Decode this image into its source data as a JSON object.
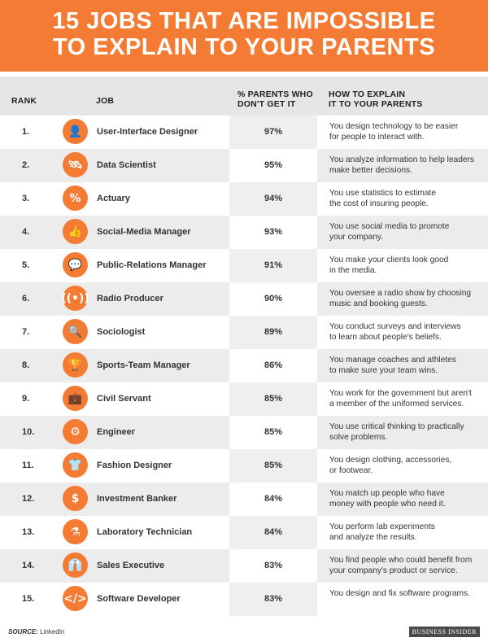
{
  "title": {
    "line1": "15 JOBS THAT ARE IMPOSSIBLE",
    "line2": "TO EXPLAIN TO YOUR PARENTS"
  },
  "header": {
    "rank": "RANK",
    "job": "JOB",
    "pct_line1": "% PARENTS WHO",
    "pct_line2": "DON'T GET IT",
    "how_line1": "HOW TO EXPLAIN",
    "how_line2": "IT TO YOUR PARENTS"
  },
  "accent_color": "#f47b33",
  "rows": [
    {
      "rank": "1.",
      "icon": "person-icon",
      "glyph": "👤",
      "job": "User-Interface Designer",
      "pct": "97%",
      "how1": "You design technology to be easier",
      "how2": "for people to interact with."
    },
    {
      "rank": "2.",
      "icon": "satellite-icon",
      "glyph": "🛰",
      "job": "Data Scientist",
      "pct": "95%",
      "how1": "You analyze information to help leaders",
      "how2": "make better decisions."
    },
    {
      "rank": "3.",
      "icon": "percent-icon",
      "glyph": "%",
      "job": "Actuary",
      "pct": "94%",
      "how1": "You use statistics to estimate",
      "how2": "the cost of insuring people."
    },
    {
      "rank": "4.",
      "icon": "thumbs-up-icon",
      "glyph": "👍",
      "job": "Social-Media Manager",
      "pct": "93%",
      "how1": "You use social media to promote",
      "how2": "your company."
    },
    {
      "rank": "5.",
      "icon": "speech-bubble-icon",
      "glyph": "💬",
      "job": "Public-Relations Manager",
      "pct": "91%",
      "how1": "You make your clients look good",
      "how2": "in the media."
    },
    {
      "rank": "6.",
      "icon": "radio-broadcast-icon",
      "glyph": "((•))",
      "job": "Radio Producer",
      "pct": "90%",
      "how1": "You oversee a radio show by choosing",
      "how2": "music and booking guests."
    },
    {
      "rank": "7.",
      "icon": "magnifying-glass-icon",
      "glyph": "🔍",
      "job": "Sociologist",
      "pct": "89%",
      "how1": "You conduct surveys and interviews",
      "how2": "to learn about people's beliefs."
    },
    {
      "rank": "8.",
      "icon": "trophy-icon",
      "glyph": "🏆",
      "job": "Sports-Team Manager",
      "pct": "86%",
      "how1": "You manage coaches and athletes",
      "how2": "to make sure your team wins."
    },
    {
      "rank": "9.",
      "icon": "briefcase-icon",
      "glyph": "💼",
      "job": "Civil Servant",
      "pct": "85%",
      "how1": "You work for the government but aren't",
      "how2": "a member of the uniformed services."
    },
    {
      "rank": "10.",
      "icon": "gears-icon",
      "glyph": "⚙",
      "job": "Engineer",
      "pct": "85%",
      "how1": "You use critical thinking to practically",
      "how2": "solve problems."
    },
    {
      "rank": "11.",
      "icon": "t-shirt-icon",
      "glyph": "👕",
      "job": "Fashion Designer",
      "pct": "85%",
      "how1": "You design clothing, accessories,",
      "how2": " or footwear."
    },
    {
      "rank": "12.",
      "icon": "dollar-sign-icon",
      "glyph": "$",
      "job": "Investment Banker",
      "pct": "84%",
      "how1": "You match up people who have",
      "how2": "money with people who need it."
    },
    {
      "rank": "13.",
      "icon": "flask-icon",
      "glyph": "⚗",
      "job": "Laboratory Technician",
      "pct": "84%",
      "how1": "You perform lab experiments",
      "how2": "and analyze the results."
    },
    {
      "rank": "14.",
      "icon": "necktie-icon",
      "glyph": "👔",
      "job": "Sales Executive",
      "pct": "83%",
      "how1": "You find people who could benefit from",
      "how2": "your company's product or service."
    },
    {
      "rank": "15.",
      "icon": "code-brackets-icon",
      "glyph": "</>",
      "job": "Software Developer",
      "pct": "83%",
      "how1": "You design and fix software programs.",
      "how2": ""
    }
  ],
  "footer": {
    "source_label": "SOURCE:",
    "source_value": " LinkedIn",
    "brand": "BUSINESS INSIDER"
  }
}
